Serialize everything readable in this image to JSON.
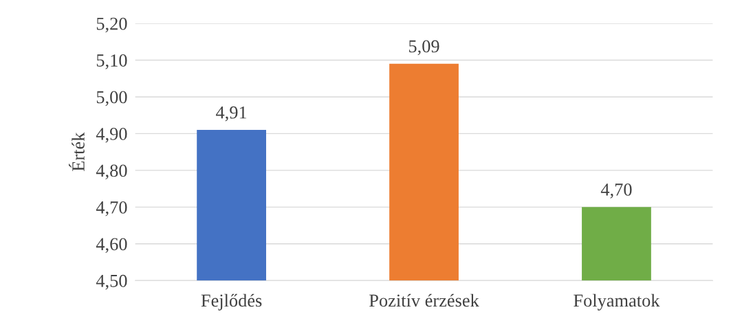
{
  "chart_data": {
    "type": "bar",
    "ylabel": "Érték",
    "categories": [
      "Fejlődés",
      "Pozitív érzések",
      "Folyamatok"
    ],
    "values": [
      4.91,
      5.09,
      4.7
    ],
    "colors": [
      "#4472c4",
      "#ed7d31",
      "#70ad47"
    ],
    "value_labels": [
      "4,91",
      "5,09",
      "4,70"
    ],
    "ylim": [
      4.5,
      5.2
    ],
    "yticks": [
      {
        "value": 4.5,
        "label": "4,50"
      },
      {
        "value": 4.6,
        "label": "4,60"
      },
      {
        "value": 4.7,
        "label": "4,70"
      },
      {
        "value": 4.8,
        "label": "4,80"
      },
      {
        "value": 4.9,
        "label": "4,90"
      },
      {
        "value": 5.0,
        "label": "5,00"
      },
      {
        "value": 5.1,
        "label": "5,10"
      },
      {
        "value": 5.2,
        "label": "5,20"
      }
    ],
    "grid": "y",
    "legend": false
  }
}
